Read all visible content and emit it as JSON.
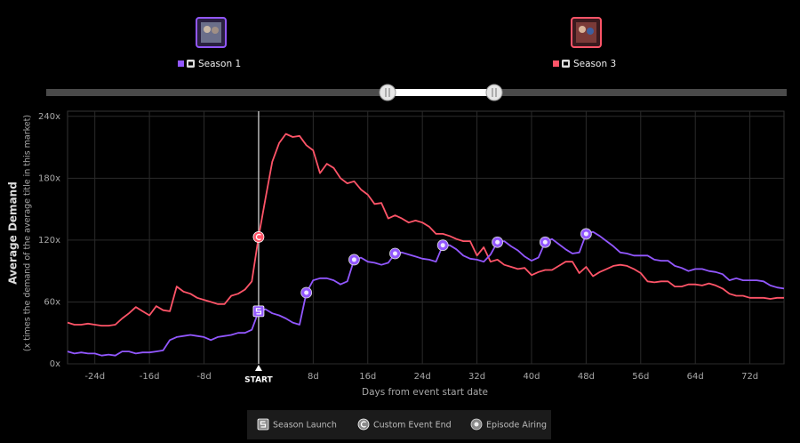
{
  "chart_data": {
    "type": "line",
    "x_label": "Days from event start date",
    "y_label": "Average Demand",
    "y_sublabel": "(x times the demand of the average title in this market)",
    "xlim": [
      -28,
      77
    ],
    "ylim": [
      0,
      245
    ],
    "xticks": [
      {
        "value": -24,
        "label": "-24d"
      },
      {
        "value": -16,
        "label": "-16d"
      },
      {
        "value": -8,
        "label": "-8d"
      },
      {
        "value": 0,
        "label": "START"
      },
      {
        "value": 8,
        "label": "8d"
      },
      {
        "value": 16,
        "label": "16d"
      },
      {
        "value": 24,
        "label": "24d"
      },
      {
        "value": 32,
        "label": "32d"
      },
      {
        "value": 40,
        "label": "40d"
      },
      {
        "value": 48,
        "label": "48d"
      },
      {
        "value": 56,
        "label": "56d"
      },
      {
        "value": 64,
        "label": "64d"
      },
      {
        "value": 72,
        "label": "72d"
      }
    ],
    "yticks": [
      {
        "value": 0,
        "label": "0x"
      },
      {
        "value": 60,
        "label": "60x"
      },
      {
        "value": 120,
        "label": "120x"
      },
      {
        "value": 180,
        "label": "180x"
      },
      {
        "value": 240,
        "label": "240x"
      }
    ],
    "grid": true,
    "x": [
      -28,
      -27,
      -26,
      -25,
      -24,
      -23,
      -22,
      -21,
      -20,
      -19,
      -18,
      -17,
      -16,
      -15,
      -14,
      -13,
      -12,
      -11,
      -10,
      -9,
      -8,
      -7,
      -6,
      -5,
      -4,
      -3,
      -2,
      -1,
      0,
      1,
      2,
      3,
      4,
      5,
      6,
      7,
      8,
      9,
      10,
      11,
      12,
      13,
      14,
      15,
      16,
      17,
      18,
      19,
      20,
      21,
      22,
      23,
      24,
      25,
      26,
      27,
      28,
      29,
      30,
      31,
      32,
      33,
      34,
      35,
      36,
      37,
      38,
      39,
      40,
      41,
      42,
      43,
      44,
      45,
      46,
      47,
      48,
      49,
      50,
      51,
      52,
      53,
      54,
      55,
      56,
      57,
      58,
      59,
      60,
      61,
      62,
      63,
      64,
      65,
      66,
      67,
      68,
      69,
      70,
      71,
      72,
      73,
      74,
      75,
      76,
      77
    ],
    "series": [
      {
        "name": "Season 1",
        "color": "#9257ff",
        "values": [
          12,
          10,
          11,
          10,
          10,
          8,
          9,
          8,
          12,
          12,
          10,
          11,
          11,
          12,
          13,
          23,
          26,
          27,
          28,
          27,
          26,
          23,
          26,
          27,
          28,
          30,
          30,
          33,
          51,
          53,
          49,
          47,
          44,
          40,
          38,
          69,
          81,
          83,
          83,
          81,
          77,
          80,
          101,
          103,
          99,
          98,
          96,
          98,
          107,
          108,
          106,
          104,
          102,
          101,
          99,
          115,
          115,
          111,
          105,
          102,
          101,
          99,
          106,
          118,
          119,
          114,
          110,
          104,
          100,
          103,
          118,
          121,
          116,
          111,
          107,
          108,
          126,
          128,
          124,
          119,
          114,
          108,
          107,
          105,
          105,
          105,
          101,
          100,
          100,
          95,
          93,
          90,
          92,
          92,
          90,
          89,
          87,
          81,
          83,
          81,
          81,
          81,
          80,
          76,
          74,
          73
        ]
      },
      {
        "name": "Season 3",
        "color": "#ff5468",
        "values": [
          40,
          38,
          38,
          39,
          38,
          37,
          37,
          38,
          44,
          49,
          55,
          51,
          47,
          56,
          52,
          51,
          75,
          70,
          68,
          64,
          62,
          60,
          58,
          58,
          66,
          68,
          72,
          80,
          123,
          160,
          196,
          214,
          223,
          220,
          221,
          212,
          207,
          185,
          194,
          190,
          180,
          175,
          177,
          169,
          164,
          155,
          156,
          141,
          144,
          141,
          137,
          139,
          137,
          133,
          126,
          126,
          124,
          121,
          119,
          119,
          105,
          113,
          99,
          101,
          96,
          94,
          92,
          93,
          86,
          89,
          91,
          91,
          95,
          99,
          99,
          88,
          94,
          85,
          89,
          92,
          95,
          96,
          95,
          92,
          88,
          80,
          79,
          80,
          80,
          75,
          75,
          77,
          77,
          76,
          78,
          76,
          73,
          68,
          66,
          66,
          64,
          64,
          64,
          63,
          64,
          64
        ]
      }
    ],
    "event_markers": [
      {
        "label": "Season Launch",
        "points": [
          {
            "series": "Season 1",
            "x": 0
          }
        ]
      },
      {
        "label": "Custom Event End",
        "points": [
          {
            "series": "Season 3",
            "x": 0
          }
        ]
      },
      {
        "label": "Episode Airing",
        "points": [
          {
            "series": "Season 1",
            "x": 7
          },
          {
            "series": "Season 1",
            "x": 14
          },
          {
            "series": "Season 1",
            "x": 20
          },
          {
            "series": "Season 1",
            "x": 27
          },
          {
            "series": "Season 1",
            "x": 35
          },
          {
            "series": "Season 1",
            "x": 42
          },
          {
            "series": "Season 1",
            "x": 48
          }
        ]
      }
    ]
  }
}
